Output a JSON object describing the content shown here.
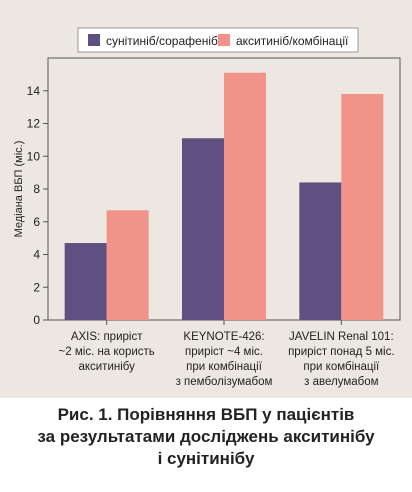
{
  "chart_data": {
    "type": "bar",
    "ylabel": "Медіана ВБП (міс.)",
    "ylim": [
      0,
      16
    ],
    "yticks": [
      0,
      2,
      4,
      6,
      8,
      10,
      12,
      14
    ],
    "grid": false,
    "legend_placement": "top-center",
    "categories": [
      [
        "AXIS: приріст",
        "~2 міс. на користь",
        "акситинібу"
      ],
      [
        "KEYNOTE-426:",
        "приріст ~4 міс.",
        "при комбінації",
        "з пемболізумабом"
      ],
      [
        "JAVELIN Renal 101:",
        "приріст понад 5 міс.",
        "при комбінації",
        "з авелумабом"
      ]
    ],
    "series": [
      {
        "name": "сунітиніб/сорафеніб",
        "color": "#5e5080",
        "values": [
          4.7,
          11.1,
          8.4
        ]
      },
      {
        "name": "акситиніб/комбінації",
        "color": "#f2938a",
        "values": [
          6.7,
          15.1,
          13.8
        ]
      }
    ]
  },
  "caption": {
    "lines": [
      "Рис. 1. Порівняння ВБП у пацієнтів",
      "за результатами досліджень акситинібу",
      "і сунітинібу"
    ]
  }
}
